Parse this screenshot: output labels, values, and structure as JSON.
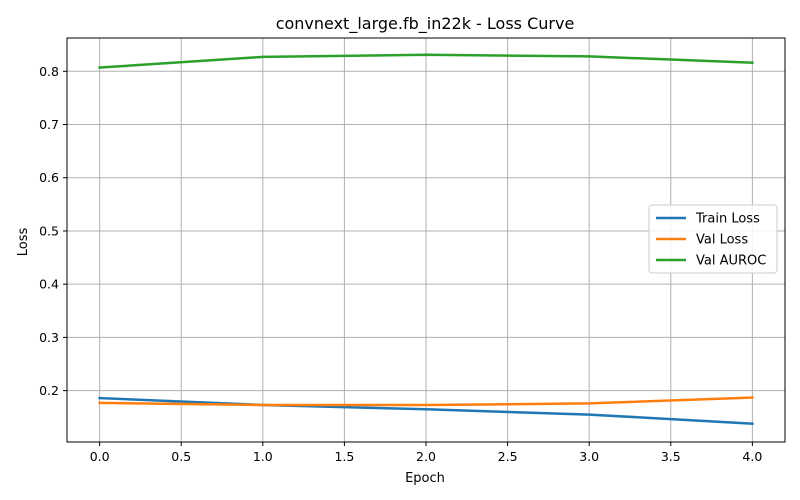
{
  "chart_data": {
    "type": "line",
    "title": "convnext_large.fb_in22k - Loss Curve",
    "xlabel": "Epoch",
    "ylabel": "Loss",
    "xlim": [
      -0.2,
      4.2
    ],
    "ylim": [
      0.1035,
      0.8625
    ],
    "xticks": [
      0.0,
      0.5,
      1.0,
      1.5,
      2.0,
      2.5,
      3.0,
      3.5,
      4.0
    ],
    "xtick_labels": [
      "0.0",
      "0.5",
      "1.0",
      "1.5",
      "2.0",
      "2.5",
      "3.0",
      "3.5",
      "4.0"
    ],
    "yticks": [
      0.2,
      0.3,
      0.4,
      0.5,
      0.6,
      0.7,
      0.8
    ],
    "ytick_labels": [
      "0.2",
      "0.3",
      "0.4",
      "0.5",
      "0.6",
      "0.7",
      "0.8"
    ],
    "grid": true,
    "legend_position": "center-right",
    "x": [
      0,
      1,
      2,
      3,
      4
    ],
    "series": [
      {
        "name": "Train Loss",
        "color": "#1f77b4",
        "values": [
          0.186,
          0.173,
          0.165,
          0.155,
          0.138
        ]
      },
      {
        "name": "Val Loss",
        "color": "#ff7f0e",
        "values": [
          0.177,
          0.173,
          0.173,
          0.176,
          0.187
        ]
      },
      {
        "name": "Val AUROC",
        "color": "#2ca02c",
        "values": [
          0.807,
          0.827,
          0.831,
          0.828,
          0.816
        ]
      }
    ]
  }
}
